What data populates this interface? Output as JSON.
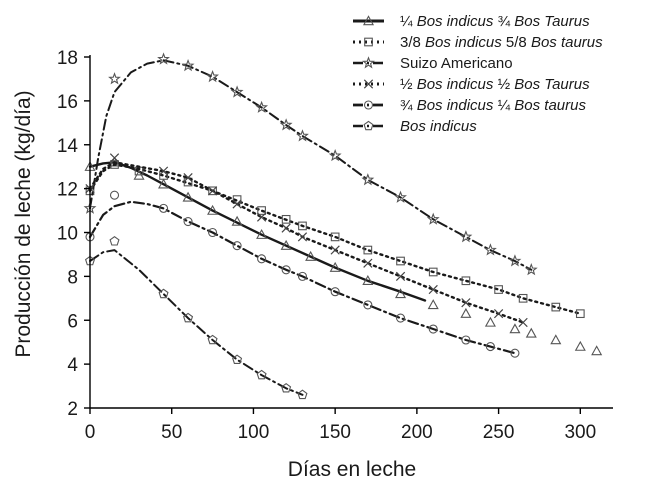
{
  "chart_data": {
    "type": "line",
    "title": "",
    "xlabel": "Días en leche",
    "ylabel": "Producción de leche (kg/día)",
    "xlim": [
      0,
      320
    ],
    "ylim": [
      2,
      18
    ],
    "xticks": [
      0,
      50,
      100,
      150,
      200,
      250,
      300
    ],
    "yticks": [
      2,
      4,
      6,
      8,
      10,
      12,
      14,
      16,
      18
    ],
    "grid": false,
    "legend_position": "top-right",
    "series": [
      {
        "name_parts": [
          {
            "text": "¼ ",
            "italic": false
          },
          {
            "text": "Bos indicus",
            "italic": true
          },
          {
            "text": " ¾ ",
            "italic": false
          },
          {
            "text": "Bos Taurus",
            "italic": true
          }
        ],
        "marker": "triangle",
        "line_style": "solid",
        "line_color": "#1a1a1a",
        "line_width": 2.4,
        "points": [
          [
            0,
            13.0
          ],
          [
            15,
            13.2
          ],
          [
            30,
            12.6
          ],
          [
            45,
            12.2
          ],
          [
            60,
            11.6
          ],
          [
            75,
            11.0
          ],
          [
            90,
            10.5
          ],
          [
            105,
            9.9
          ],
          [
            120,
            9.4
          ],
          [
            135,
            8.9
          ],
          [
            150,
            8.4
          ],
          [
            170,
            7.8
          ],
          [
            190,
            7.2
          ],
          [
            210,
            6.7
          ],
          [
            230,
            6.3
          ],
          [
            245,
            5.9
          ],
          [
            260,
            5.6
          ],
          [
            270,
            5.4
          ],
          [
            285,
            5.1
          ],
          [
            300,
            4.8
          ],
          [
            310,
            4.6
          ]
        ],
        "line": [
          [
            0,
            13.0
          ],
          [
            8,
            13.15
          ],
          [
            15,
            13.2
          ],
          [
            25,
            12.95
          ],
          [
            35,
            12.6
          ],
          [
            45,
            12.2
          ],
          [
            75,
            11.0
          ],
          [
            105,
            9.9
          ],
          [
            135,
            8.9
          ],
          [
            150,
            8.4
          ],
          [
            170,
            7.8
          ],
          [
            190,
            7.3
          ],
          [
            205,
            6.9
          ]
        ]
      },
      {
        "name_parts": [
          {
            "text": "3/8 ",
            "italic": false
          },
          {
            "text": "Bos indicus",
            "italic": true
          },
          {
            "text": " 5/8 ",
            "italic": false
          },
          {
            "text": "Bos taurus",
            "italic": true
          }
        ],
        "marker": "square",
        "line_style": "dotted",
        "line_color": "#1a1a1a",
        "line_width": 2.4,
        "points": [
          [
            0,
            11.9
          ],
          [
            15,
            13.1
          ],
          [
            30,
            12.8
          ],
          [
            45,
            12.6
          ],
          [
            60,
            12.3
          ],
          [
            75,
            11.9
          ],
          [
            90,
            11.5
          ],
          [
            105,
            11.0
          ],
          [
            120,
            10.6
          ],
          [
            130,
            10.3
          ],
          [
            150,
            9.8
          ],
          [
            170,
            9.2
          ],
          [
            190,
            8.7
          ],
          [
            210,
            8.2
          ],
          [
            230,
            7.8
          ],
          [
            250,
            7.4
          ],
          [
            265,
            7.0
          ],
          [
            285,
            6.6
          ],
          [
            300,
            6.3
          ]
        ],
        "line": [
          [
            0,
            11.9
          ],
          [
            8,
            12.8
          ],
          [
            15,
            13.1
          ],
          [
            30,
            12.9
          ],
          [
            45,
            12.6
          ],
          [
            75,
            11.9
          ],
          [
            105,
            11.0
          ],
          [
            130,
            10.3
          ],
          [
            150,
            9.8
          ],
          [
            170,
            9.2
          ],
          [
            190,
            8.7
          ],
          [
            210,
            8.2
          ],
          [
            230,
            7.8
          ],
          [
            250,
            7.4
          ],
          [
            265,
            7.0
          ],
          [
            285,
            6.6
          ],
          [
            300,
            6.3
          ]
        ]
      },
      {
        "name_parts": [
          {
            "text": "Suizo Americano",
            "italic": false
          }
        ],
        "marker": "star",
        "line_style": "dashdot",
        "line_color": "#1a1a1a",
        "line_width": 2.0,
        "points": [
          [
            0,
            11.1
          ],
          [
            15,
            17.0
          ],
          [
            45,
            17.9
          ],
          [
            60,
            17.6
          ],
          [
            75,
            17.1
          ],
          [
            90,
            16.4
          ],
          [
            105,
            15.7
          ],
          [
            120,
            14.9
          ],
          [
            130,
            14.4
          ],
          [
            150,
            13.5
          ],
          [
            170,
            12.4
          ],
          [
            190,
            11.6
          ],
          [
            210,
            10.6
          ],
          [
            230,
            9.8
          ],
          [
            245,
            9.2
          ],
          [
            260,
            8.7
          ],
          [
            270,
            8.3
          ]
        ],
        "line": [
          [
            0,
            11.1
          ],
          [
            5,
            13.4
          ],
          [
            10,
            15.3
          ],
          [
            15,
            16.4
          ],
          [
            25,
            17.3
          ],
          [
            35,
            17.7
          ],
          [
            45,
            17.85
          ],
          [
            60,
            17.6
          ],
          [
            75,
            17.1
          ],
          [
            90,
            16.4
          ],
          [
            105,
            15.7
          ],
          [
            120,
            14.9
          ],
          [
            130,
            14.4
          ],
          [
            150,
            13.5
          ],
          [
            170,
            12.4
          ],
          [
            190,
            11.6
          ],
          [
            210,
            10.6
          ],
          [
            230,
            9.8
          ],
          [
            245,
            9.2
          ],
          [
            260,
            8.7
          ],
          [
            270,
            8.3
          ]
        ]
      },
      {
        "name_parts": [
          {
            "text": "½ ",
            "italic": false
          },
          {
            "text": "Bos indicus",
            "italic": true
          },
          {
            "text": " ½ ",
            "italic": false
          },
          {
            "text": "Bos Taurus",
            "italic": true
          }
        ],
        "marker": "cross",
        "line_style": "dotted",
        "line_color": "#1a1a1a",
        "line_width": 2.4,
        "points": [
          [
            0,
            12.0
          ],
          [
            15,
            13.4
          ],
          [
            45,
            12.8
          ],
          [
            60,
            12.5
          ],
          [
            75,
            11.9
          ],
          [
            90,
            11.3
          ],
          [
            105,
            10.7
          ],
          [
            120,
            10.2
          ],
          [
            130,
            9.8
          ],
          [
            150,
            9.2
          ],
          [
            170,
            8.6
          ],
          [
            190,
            8.0
          ],
          [
            210,
            7.4
          ],
          [
            230,
            6.8
          ],
          [
            250,
            6.3
          ],
          [
            265,
            5.9
          ]
        ],
        "line": [
          [
            0,
            12.0
          ],
          [
            8,
            12.9
          ],
          [
            15,
            13.2
          ],
          [
            30,
            13.0
          ],
          [
            45,
            12.8
          ],
          [
            60,
            12.5
          ],
          [
            75,
            11.9
          ],
          [
            90,
            11.3
          ],
          [
            105,
            10.7
          ],
          [
            120,
            10.2
          ],
          [
            130,
            9.8
          ],
          [
            150,
            9.2
          ],
          [
            170,
            8.6
          ],
          [
            190,
            8.0
          ],
          [
            210,
            7.4
          ],
          [
            230,
            6.8
          ],
          [
            250,
            6.3
          ],
          [
            265,
            5.9
          ]
        ]
      },
      {
        "name_parts": [
          {
            "text": "¾ ",
            "italic": false
          },
          {
            "text": "Bos indicus",
            "italic": true
          },
          {
            "text": " ¼ ",
            "italic": false
          },
          {
            "text": "Bos taurus",
            "italic": true
          }
        ],
        "marker": "circle",
        "line_style": "dashdot",
        "line_color": "#1a1a1a",
        "line_width": 2.2,
        "points": [
          [
            0,
            9.8
          ],
          [
            15,
            11.7
          ],
          [
            45,
            11.1
          ],
          [
            60,
            10.5
          ],
          [
            75,
            10.0
          ],
          [
            90,
            9.4
          ],
          [
            105,
            8.8
          ],
          [
            120,
            8.3
          ],
          [
            130,
            8.0
          ],
          [
            150,
            7.3
          ],
          [
            170,
            6.7
          ],
          [
            190,
            6.1
          ],
          [
            210,
            5.6
          ],
          [
            230,
            5.1
          ],
          [
            245,
            4.8
          ],
          [
            260,
            4.5
          ]
        ],
        "line": [
          [
            0,
            9.8
          ],
          [
            8,
            10.8
          ],
          [
            15,
            11.2
          ],
          [
            25,
            11.4
          ],
          [
            35,
            11.3
          ],
          [
            45,
            11.1
          ],
          [
            60,
            10.5
          ],
          [
            75,
            10.0
          ],
          [
            90,
            9.4
          ],
          [
            105,
            8.8
          ],
          [
            120,
            8.3
          ],
          [
            130,
            8.0
          ],
          [
            150,
            7.3
          ],
          [
            170,
            6.7
          ],
          [
            190,
            6.1
          ],
          [
            210,
            5.6
          ],
          [
            230,
            5.1
          ],
          [
            245,
            4.8
          ],
          [
            260,
            4.5
          ]
        ]
      },
      {
        "name_parts": [
          {
            "text": "Bos indicus",
            "italic": true
          }
        ],
        "marker": "pentagon",
        "line_style": "dashdot",
        "line_color": "#1a1a1a",
        "line_width": 2.0,
        "points": [
          [
            0,
            8.7
          ],
          [
            15,
            9.6
          ],
          [
            45,
            7.2
          ],
          [
            60,
            6.1
          ],
          [
            75,
            5.1
          ],
          [
            90,
            4.2
          ],
          [
            105,
            3.5
          ],
          [
            120,
            2.9
          ],
          [
            130,
            2.6
          ]
        ],
        "line": [
          [
            0,
            8.7
          ],
          [
            8,
            9.1
          ],
          [
            15,
            9.2
          ],
          [
            30,
            8.3
          ],
          [
            45,
            7.2
          ],
          [
            60,
            6.1
          ],
          [
            75,
            5.1
          ],
          [
            90,
            4.2
          ],
          [
            105,
            3.5
          ],
          [
            120,
            2.9
          ],
          [
            130,
            2.6
          ]
        ]
      }
    ]
  }
}
